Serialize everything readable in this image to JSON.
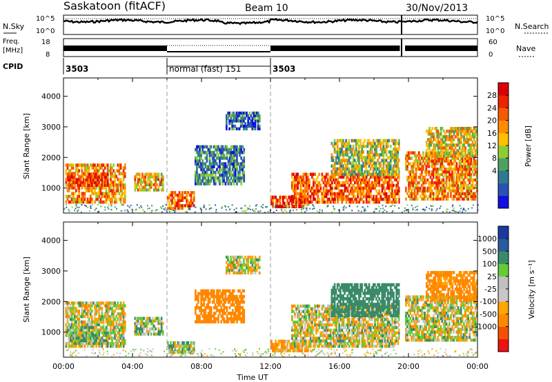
{
  "header": {
    "station": "Saskatoon (fitACF)",
    "beam": "Beam 10",
    "date": "30/Nov/2013"
  },
  "strip_labels": {
    "nsky": "N.Sky",
    "nsky_ticks": [
      "10^5",
      "10^0"
    ],
    "nsearch": "N.Search",
    "nsearch_ticks": [
      "10^5",
      "10^0"
    ],
    "freq": "Freq.",
    "freq_unit": "[MHz]",
    "freq_ticks": [
      "18",
      "8"
    ],
    "nave": "Nave",
    "nave_ticks": [
      "60",
      "0"
    ],
    "cpid": "CPID"
  },
  "cpid_segments": [
    {
      "label": "3503",
      "start_hr": 0,
      "end_hr": 6
    },
    {
      "label": "normal (fast) 151",
      "start_hr": 6,
      "end_hr": 12
    },
    {
      "label": "3503",
      "start_hr": 12,
      "end_hr": 24
    }
  ],
  "colors": {
    "power_scale": [
      "#1010e0",
      "#2a52b4",
      "#2f7a93",
      "#4fa060",
      "#8fcc33",
      "#ffc000",
      "#ff8c00",
      "#f55a00",
      "#ee2200",
      "#dd0000"
    ],
    "velocity_scale": [
      "#ee1111",
      "#f55000",
      "#ff8800",
      "#ffa500",
      "#c8c8c8",
      "#c0c0c0",
      "#66cc33",
      "#3a8a6a",
      "#2a5aa0",
      "#1a3aa0"
    ]
  },
  "chart_data": [
    {
      "type": "heatmap",
      "name": "power",
      "ylabel": "Slant Range [km]",
      "xlabel": "Time UT",
      "x_ticks": [
        "00:00",
        "04:00",
        "08:00",
        "12:00",
        "16:00",
        "20:00",
        "00:00"
      ],
      "x_range_hr": [
        0,
        24
      ],
      "y_ticks": [
        1000,
        2000,
        3000,
        4000
      ],
      "y_range_km": [
        180,
        4600
      ],
      "colorbar_label": "Power [dB]",
      "colorbar_ticks": [
        "28",
        "24",
        "20",
        "16",
        "12",
        "8",
        "4"
      ],
      "regions": [
        {
          "t0": 0.1,
          "t1": 3.6,
          "r0": 500,
          "r1": 1800,
          "v": 22
        },
        {
          "t0": 0.2,
          "t1": 2.6,
          "r0": 1050,
          "r1": 1500,
          "v": 27
        },
        {
          "t0": 4.1,
          "t1": 5.8,
          "r0": 900,
          "r1": 1500,
          "v": 20
        },
        {
          "t0": 6.0,
          "t1": 7.6,
          "r0": 300,
          "r1": 900,
          "v": 24
        },
        {
          "t0": 7.6,
          "t1": 10.5,
          "r0": 1100,
          "r1": 2400,
          "v": 10
        },
        {
          "t0": 9.4,
          "t1": 11.4,
          "r0": 2900,
          "r1": 3500,
          "v": 8
        },
        {
          "t0": 12.0,
          "t1": 14.2,
          "r0": 350,
          "r1": 750,
          "v": 26
        },
        {
          "t0": 13.2,
          "t1": 19.5,
          "r0": 500,
          "r1": 1500,
          "v": 25
        },
        {
          "t0": 15.5,
          "t1": 19.5,
          "r0": 1400,
          "r1": 2600,
          "v": 16
        },
        {
          "t0": 19.8,
          "t1": 24.0,
          "r0": 600,
          "r1": 2200,
          "v": 22
        },
        {
          "t0": 21.0,
          "t1": 24.0,
          "r0": 2000,
          "r1": 3000,
          "v": 18
        }
      ]
    },
    {
      "type": "heatmap",
      "name": "velocity",
      "ylabel": "Slant Range [km]",
      "xlabel": "Time UT",
      "x_ticks": [
        "00:00",
        "04:00",
        "08:00",
        "12:00",
        "16:00",
        "20:00",
        "00:00"
      ],
      "x_range_hr": [
        0,
        24
      ],
      "y_ticks": [
        1000,
        2000,
        3000,
        4000
      ],
      "y_range_km": [
        180,
        4600
      ],
      "colorbar_label": "Velocity [m s⁻¹]",
      "colorbar_ticks": [
        "1000",
        "500",
        "100",
        "25",
        "-25",
        "-100",
        "-500",
        "-1000"
      ],
      "regions": [
        {
          "t0": 0.1,
          "t1": 3.6,
          "r0": 500,
          "r1": 2000,
          "v": 0
        },
        {
          "t0": 0.2,
          "t1": 2.6,
          "r0": 600,
          "r1": 1200,
          "v": 80
        },
        {
          "t0": 4.1,
          "t1": 5.8,
          "r0": 900,
          "r1": 1500,
          "v": 60
        },
        {
          "t0": 6.0,
          "t1": 7.6,
          "r0": 300,
          "r1": 700,
          "v": 60
        },
        {
          "t0": 7.6,
          "t1": 10.5,
          "r0": 1300,
          "r1": 2400,
          "v": -300
        },
        {
          "t0": 9.4,
          "t1": 11.4,
          "r0": 2900,
          "r1": 3500,
          "v": 0
        },
        {
          "t0": 12.0,
          "t1": 14.2,
          "r0": 350,
          "r1": 750,
          "v": -150
        },
        {
          "t0": 13.2,
          "t1": 19.5,
          "r0": 500,
          "r1": 1900,
          "v": 0
        },
        {
          "t0": 15.5,
          "t1": 19.5,
          "r0": 1500,
          "r1": 2600,
          "v": 300
        },
        {
          "t0": 19.8,
          "t1": 24.0,
          "r0": 700,
          "r1": 2200,
          "v": 0
        },
        {
          "t0": 21.0,
          "t1": 24.0,
          "r0": 2000,
          "r1": 3000,
          "v": -200
        }
      ]
    }
  ]
}
